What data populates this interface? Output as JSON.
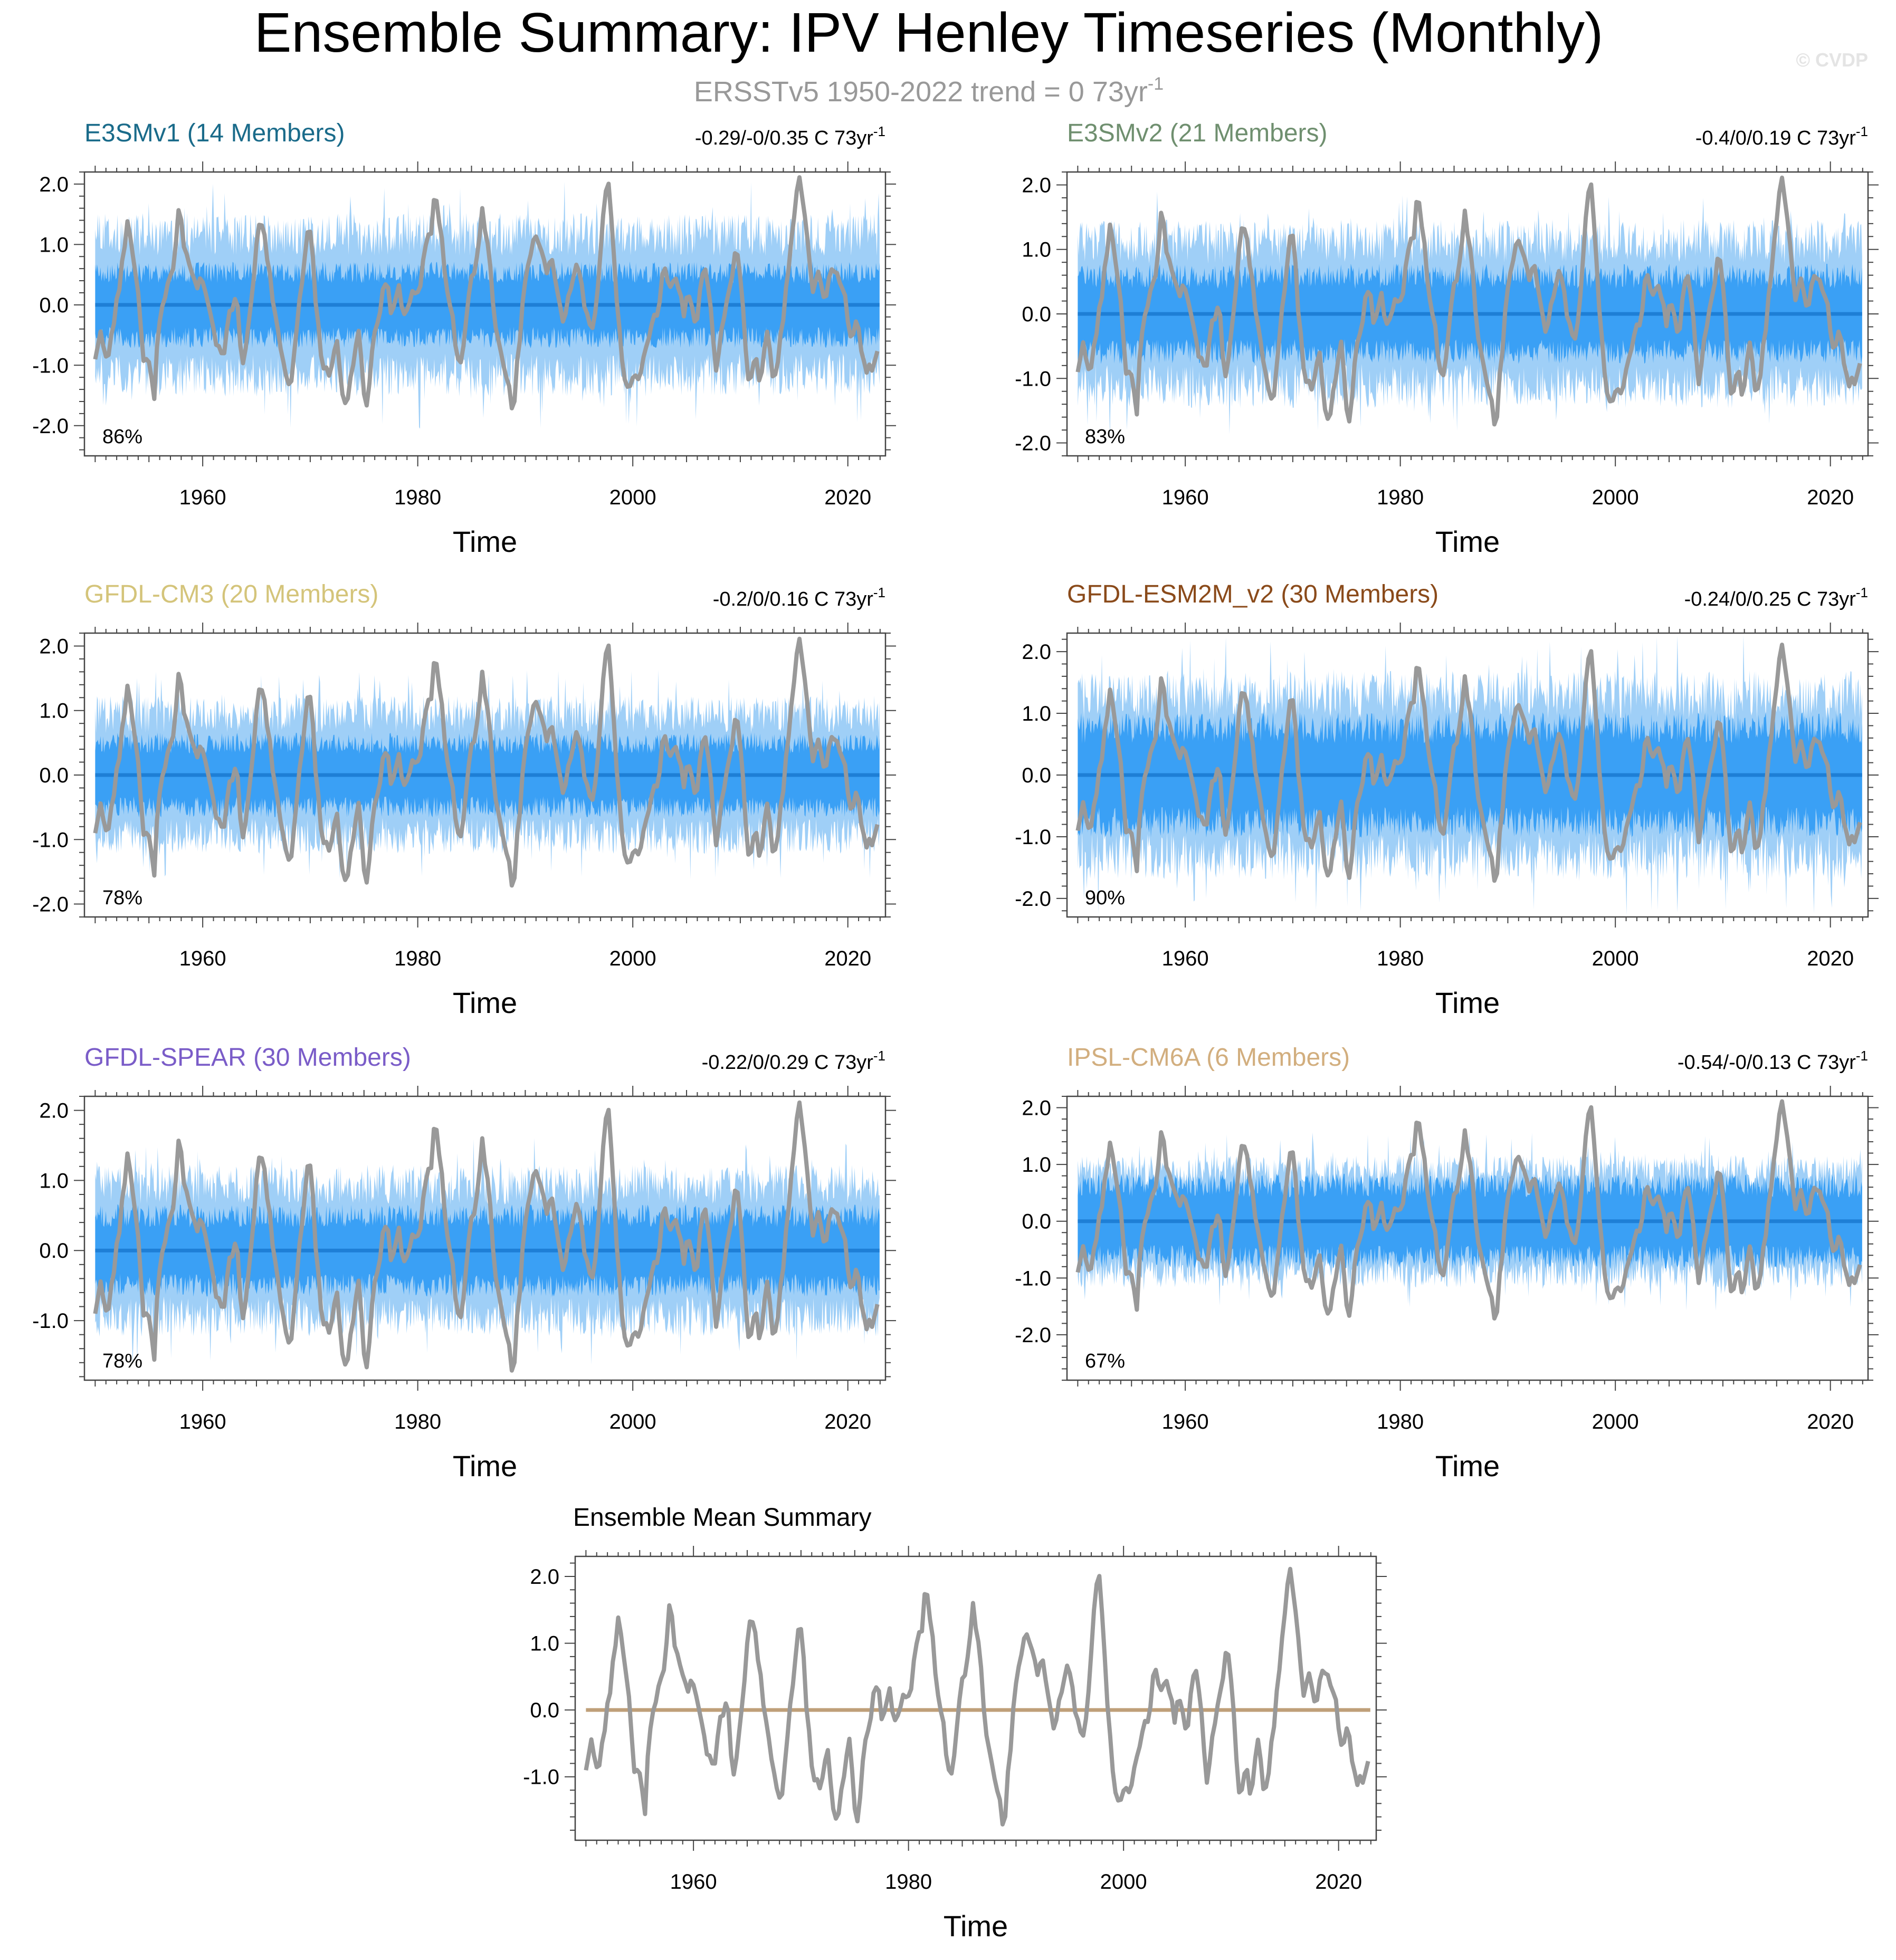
{
  "header": {
    "title": "Ensemble Summary: IPV Henley Timeseries (Monthly)",
    "subtitle": "ERSST​v5 1950-2022 trend = 0 73yr",
    "subtitle_sup": "-1",
    "watermark": "© CVDP"
  },
  "colors": {
    "outer_band": "#9fcff7",
    "inner_band": "#3aa0f5",
    "mean_line": "#1e7fd6",
    "obs_line": "#999999",
    "summary_zero_line": "#bf9f79"
  },
  "chart_data": [
    {
      "type": "area",
      "title": "E3SMv1 (14 Members)",
      "title_color": "#1a6b8a",
      "trend_text": "-0.29/-0/0.35 C 73yr",
      "trend_sup": "-1",
      "pct_label": "86%",
      "xlabel": "Time",
      "ylabel": "",
      "xlim": [
        1949,
        2023.5
      ],
      "ylim": [
        -2.5,
        2.2
      ],
      "x_ticks": [
        1960,
        1980,
        2000,
        2020
      ],
      "x_tick_labels": [
        "1960",
        "1980",
        "2000",
        "2020"
      ],
      "y_ticks": [
        2,
        1,
        0,
        -1,
        -2
      ],
      "y_tick_labels": [
        "2.0",
        "1.0",
        "0.0",
        "-1.0",
        "-2.0"
      ],
      "series": [
        {
          "role": "outer-range",
          "spread": 1.3,
          "color": "#9fcff7"
        },
        {
          "role": "inner-range",
          "spread": 0.6,
          "color": "#3aa0f5"
        },
        {
          "role": "ensemble-mean",
          "value": 0.0,
          "color": "#1e7fd6"
        },
        {
          "role": "observations",
          "color": "#999999"
        }
      ]
    },
    {
      "type": "area",
      "title": "E3SMv2 (21 Members)",
      "title_color": "#6f8f6f",
      "trend_text": "-0.4/0/0.19 C 73yr",
      "trend_sup": "-1",
      "pct_label": "83%",
      "xlabel": "Time",
      "ylabel": "",
      "xlim": [
        1949,
        2023.5
      ],
      "ylim": [
        -2.2,
        2.2
      ],
      "x_ticks": [
        1960,
        1980,
        2000,
        2020
      ],
      "x_tick_labels": [
        "1960",
        "1980",
        "2000",
        "2020"
      ],
      "y_ticks": [
        2,
        1,
        0,
        -1,
        -2
      ],
      "y_tick_labels": [
        "2.0",
        "1.0",
        "0.0",
        "-1.0",
        "-2.0"
      ],
      "series": [
        {
          "role": "outer-range",
          "spread": 1.25,
          "color": "#9fcff7"
        },
        {
          "role": "inner-range",
          "spread": 0.65,
          "color": "#3aa0f5"
        },
        {
          "role": "ensemble-mean",
          "value": 0.0,
          "color": "#1e7fd6"
        },
        {
          "role": "observations",
          "color": "#999999"
        }
      ]
    },
    {
      "type": "area",
      "title": "GFDL-CM3 (20 Members)",
      "title_color": "#d4c47a",
      "trend_text": "-0.2/0/0.16 C 73yr",
      "trend_sup": "-1",
      "pct_label": "78%",
      "xlabel": "Time",
      "ylabel": "",
      "xlim": [
        1949,
        2023.5
      ],
      "ylim": [
        -2.2,
        2.2
      ],
      "x_ticks": [
        1960,
        1980,
        2000,
        2020
      ],
      "x_tick_labels": [
        "1960",
        "1980",
        "2000",
        "2020"
      ],
      "y_ticks": [
        2,
        1,
        0,
        -1,
        -2
      ],
      "y_tick_labels": [
        "2.0",
        "1.0",
        "0.0",
        "-1.0",
        "-2.0"
      ],
      "series": [
        {
          "role": "outer-range",
          "spread": 1.05,
          "color": "#9fcff7"
        },
        {
          "role": "inner-range",
          "spread": 0.55,
          "color": "#3aa0f5"
        },
        {
          "role": "ensemble-mean",
          "value": 0.0,
          "color": "#1e7fd6"
        },
        {
          "role": "observations",
          "color": "#999999"
        }
      ]
    },
    {
      "type": "area",
      "title": "GFDL-ESM2M_v2 (30 Members)",
      "title_color": "#8a4a1a",
      "trend_text": "-0.24/0/0.25 C 73yr",
      "trend_sup": "-1",
      "pct_label": "90%",
      "xlabel": "Time",
      "ylabel": "",
      "xlim": [
        1949,
        2023.5
      ],
      "ylim": [
        -2.3,
        2.3
      ],
      "x_ticks": [
        1960,
        1980,
        2000,
        2020
      ],
      "x_tick_labels": [
        "1960",
        "1980",
        "2000",
        "2020"
      ],
      "y_ticks": [
        2,
        1,
        0,
        -1,
        -2
      ],
      "y_tick_labels": [
        "2.0",
        "1.0",
        "0.0",
        "-1.0",
        "-2.0"
      ],
      "series": [
        {
          "role": "outer-range",
          "spread": 1.45,
          "color": "#9fcff7"
        },
        {
          "role": "inner-range",
          "spread": 0.85,
          "color": "#3aa0f5"
        },
        {
          "role": "ensemble-mean",
          "value": 0.0,
          "color": "#1e7fd6"
        },
        {
          "role": "observations",
          "color": "#999999"
        }
      ]
    },
    {
      "type": "area",
      "title": "GFDL-SPEAR (30 Members)",
      "title_color": "#7a5cc8",
      "trend_text": "-0.22/0/0.29 C 73yr",
      "trend_sup": "-1",
      "pct_label": "78%",
      "xlabel": "Time",
      "ylabel": "",
      "xlim": [
        1949,
        2023.5
      ],
      "ylim": [
        -1.85,
        2.2
      ],
      "x_ticks": [
        1960,
        1980,
        2000,
        2020
      ],
      "x_tick_labels": [
        "1960",
        "1980",
        "2000",
        "2020"
      ],
      "y_ticks": [
        2,
        1,
        0,
        -1
      ],
      "y_tick_labels": [
        "2.0",
        "1.0",
        "0.0",
        "-1.0"
      ],
      "series": [
        {
          "role": "outer-range",
          "spread": 1.05,
          "color": "#9fcff7"
        },
        {
          "role": "inner-range",
          "spread": 0.55,
          "color": "#3aa0f5"
        },
        {
          "role": "ensemble-mean",
          "value": 0.0,
          "color": "#1e7fd6"
        },
        {
          "role": "observations",
          "color": "#999999"
        }
      ]
    },
    {
      "type": "area",
      "title": "IPSL-CM6A (6 Members)",
      "title_color": "#d2ae7e",
      "trend_text": "-0.54/-0/0.13 C 73yr",
      "trend_sup": "-1",
      "pct_label": "67%",
      "xlabel": "Time",
      "ylabel": "",
      "xlim": [
        1949,
        2023.5
      ],
      "ylim": [
        -2.8,
        2.2
      ],
      "x_ticks": [
        1960,
        1980,
        2000,
        2020
      ],
      "x_tick_labels": [
        "1960",
        "1980",
        "2000",
        "2020"
      ],
      "y_ticks": [
        2,
        1,
        0,
        -1,
        -2
      ],
      "y_tick_labels": [
        "2.0",
        "1.0",
        "0.0",
        "-1.0",
        "-2.0"
      ],
      "series": [
        {
          "role": "outer-range",
          "spread": 1.0,
          "color": "#9fcff7"
        },
        {
          "role": "inner-range",
          "spread": 0.7,
          "color": "#3aa0f5"
        },
        {
          "role": "ensemble-mean",
          "value": 0.0,
          "color": "#1e7fd6"
        },
        {
          "role": "observations",
          "color": "#999999"
        }
      ]
    },
    {
      "type": "line",
      "title": "Ensemble Mean Summary",
      "title_color": "#000000",
      "trend_text": "",
      "trend_sup": "",
      "pct_label": "",
      "xlabel": "Time",
      "ylabel": "",
      "xlim": [
        1949,
        2023.5
      ],
      "ylim": [
        -1.95,
        2.3
      ],
      "x_ticks": [
        1960,
        1980,
        2000,
        2020
      ],
      "x_tick_labels": [
        "1960",
        "1980",
        "2000",
        "2020"
      ],
      "y_ticks": [
        2,
        1,
        0,
        -1
      ],
      "y_tick_labels": [
        "2.0",
        "1.0",
        "0.0",
        "-1.0"
      ],
      "series": [
        {
          "role": "ensemble-mean",
          "value": 0.0,
          "color": "#bf9f79"
        },
        {
          "role": "observations",
          "color": "#999999"
        }
      ]
    }
  ],
  "observations": {
    "name": "ERSSTv5",
    "x_start": 1950.0,
    "x_step": 0.25,
    "anchors": [
      [
        1950.0,
        -0.85
      ],
      [
        1950.5,
        -0.45
      ],
      [
        1951.0,
        -0.9
      ],
      [
        1951.7,
        -0.3
      ],
      [
        1952.2,
        0.3
      ],
      [
        1952.7,
        0.9
      ],
      [
        1953.1,
        1.35
      ],
      [
        1953.5,
        0.8
      ],
      [
        1954.0,
        0.2
      ],
      [
        1954.5,
        -0.9
      ],
      [
        1955.0,
        -1.0
      ],
      [
        1955.5,
        -1.45
      ],
      [
        1955.9,
        -0.3
      ],
      [
        1956.5,
        0.2
      ],
      [
        1957.3,
        0.6
      ],
      [
        1957.8,
        1.5
      ],
      [
        1958.3,
        1.0
      ],
      [
        1958.8,
        0.6
      ],
      [
        1959.5,
        0.35
      ],
      [
        1960.0,
        0.35
      ],
      [
        1960.6,
        -0.1
      ],
      [
        1961.3,
        -0.6
      ],
      [
        1961.9,
        -0.8
      ],
      [
        1962.5,
        -0.2
      ],
      [
        1963.2,
        0.0
      ],
      [
        1963.7,
        -0.9
      ],
      [
        1964.2,
        -0.5
      ],
      [
        1964.8,
        0.6
      ],
      [
        1965.5,
        1.4
      ],
      [
        1966.1,
        0.6
      ],
      [
        1966.8,
        -0.2
      ],
      [
        1967.3,
        -0.85
      ],
      [
        1968.2,
        -1.3
      ],
      [
        1968.8,
        -0.3
      ],
      [
        1969.5,
        0.8
      ],
      [
        1970.0,
        1.2
      ],
      [
        1970.7,
        -0.3
      ],
      [
        1971.3,
        -1.0
      ],
      [
        1972.0,
        -1.1
      ],
      [
        1972.5,
        -0.6
      ],
      [
        1973.1,
        -1.7
      ],
      [
        1973.8,
        -1.25
      ],
      [
        1974.5,
        -0.5
      ],
      [
        1975.2,
        -1.7
      ],
      [
        1975.8,
        -0.6
      ],
      [
        1976.4,
        -0.3
      ],
      [
        1977.0,
        0.4
      ],
      [
        1977.6,
        -0.2
      ],
      [
        1978.2,
        0.3
      ],
      [
        1978.8,
        -0.2
      ],
      [
        1979.4,
        0.2
      ],
      [
        1980.0,
        0.2
      ],
      [
        1980.6,
        0.8
      ],
      [
        1981.2,
        1.2
      ],
      [
        1981.6,
        1.7
      ],
      [
        1982.0,
        1.35
      ],
      [
        1982.6,
        0.5
      ],
      [
        1983.2,
        -0.2
      ],
      [
        1983.8,
        -0.9
      ],
      [
        1984.4,
        -0.5
      ],
      [
        1984.9,
        0.3
      ],
      [
        1985.5,
        0.8
      ],
      [
        1986.0,
        1.5
      ],
      [
        1986.6,
        0.8
      ],
      [
        1987.2,
        -0.3
      ],
      [
        1987.8,
        -0.9
      ],
      [
        1988.4,
        -1.3
      ],
      [
        1988.9,
        -1.6
      ],
      [
        1989.5,
        -0.5
      ],
      [
        1990.1,
        0.5
      ],
      [
        1990.7,
        1.0
      ],
      [
        1991.3,
        1.1
      ],
      [
        1991.9,
        0.6
      ],
      [
        1992.5,
        0.7
      ],
      [
        1993.1,
        0.1
      ],
      [
        1993.7,
        -0.2
      ],
      [
        1994.3,
        0.4
      ],
      [
        1994.9,
        0.6
      ],
      [
        1995.5,
        0.0
      ],
      [
        1996.1,
        -0.4
      ],
      [
        1996.7,
        0.2
      ],
      [
        1997.3,
        1.5
      ],
      [
        1997.7,
        2.0
      ],
      [
        1998.1,
        1.2
      ],
      [
        1998.7,
        -0.3
      ],
      [
        1999.3,
        -1.2
      ],
      [
        1999.9,
        -1.25
      ],
      [
        2000.5,
        -1.2
      ],
      [
        2001.1,
        -0.8
      ],
      [
        2001.7,
        -0.4
      ],
      [
        2002.3,
        -0.1
      ],
      [
        2002.9,
        0.5
      ],
      [
        2003.5,
        0.2
      ],
      [
        2004.1,
        0.4
      ],
      [
        2004.7,
        -0.1
      ],
      [
        2005.3,
        0.2
      ],
      [
        2005.9,
        -0.3
      ],
      [
        2006.5,
        0.5
      ],
      [
        2007.1,
        0.2
      ],
      [
        2007.7,
        -1.0
      ],
      [
        2008.3,
        -0.3
      ],
      [
        2008.9,
        0.1
      ],
      [
        2009.5,
        0.8
      ],
      [
        2010.1,
        0.3
      ],
      [
        2010.7,
        -1.2
      ],
      [
        2011.3,
        -0.9
      ],
      [
        2011.9,
        -1.2
      ],
      [
        2012.5,
        -0.4
      ],
      [
        2013.1,
        -1.2
      ],
      [
        2013.7,
        -0.6
      ],
      [
        2014.3,
        0.3
      ],
      [
        2014.9,
        1.3
      ],
      [
        2015.5,
        2.05
      ],
      [
        2016.1,
        1.3
      ],
      [
        2016.7,
        0.3
      ],
      [
        2017.3,
        0.5
      ],
      [
        2017.9,
        0.0
      ],
      [
        2018.5,
        0.6
      ],
      [
        2019.1,
        0.55
      ],
      [
        2019.7,
        0.1
      ],
      [
        2020.3,
        -0.6
      ],
      [
        2020.9,
        -0.3
      ],
      [
        2021.5,
        -1.0
      ],
      [
        2022.1,
        -1.05
      ],
      [
        2022.6,
        -0.9
      ],
      [
        2022.9,
        -0.7
      ]
    ]
  }
}
